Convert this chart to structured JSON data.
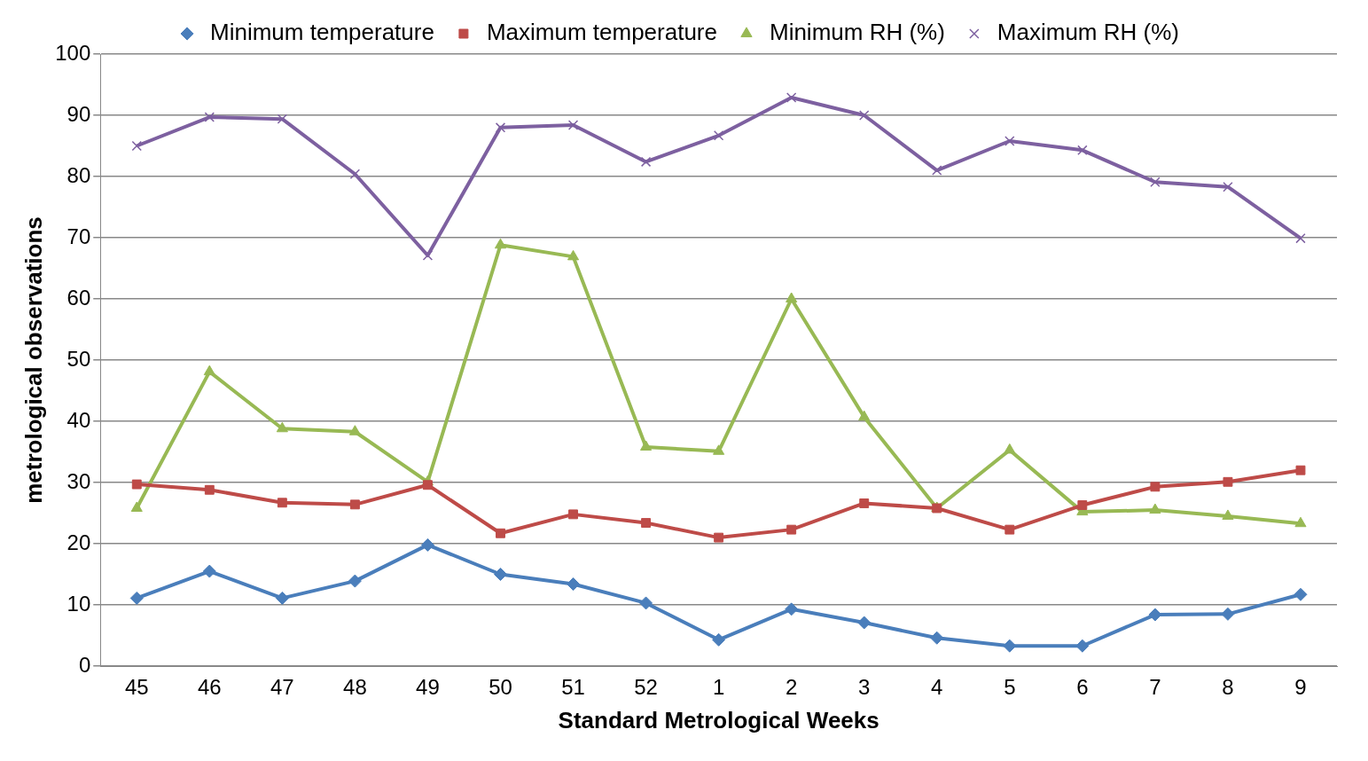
{
  "chart_data": {
    "type": "line",
    "xlabel": "Standard Metrological Weeks",
    "ylabel": "metrological observations",
    "categories": [
      "45",
      "46",
      "47",
      "48",
      "49",
      "50",
      "51",
      "52",
      "1",
      "2",
      "3",
      "4",
      "5",
      "6",
      "7",
      "8",
      "9"
    ],
    "ylim": [
      0,
      100
    ],
    "yticks": [
      0,
      10,
      20,
      30,
      40,
      50,
      60,
      70,
      80,
      90,
      100
    ],
    "grid": "y",
    "legend": "top",
    "line_style": "solid",
    "series": [
      {
        "name": "Minimum temperature",
        "color": "#4a7ebb",
        "marker": "diamond",
        "values": [
          11.1,
          15.5,
          11.1,
          13.9,
          19.8,
          15.0,
          13.4,
          10.3,
          4.3,
          9.3,
          7.1,
          4.6,
          3.3,
          3.3,
          8.4,
          8.5,
          11.7
        ]
      },
      {
        "name": "Maximum temperature",
        "color": "#be4b48",
        "marker": "square",
        "values": [
          29.7,
          28.8,
          26.7,
          26.4,
          29.6,
          21.7,
          24.8,
          23.4,
          21.0,
          22.3,
          26.6,
          25.8,
          22.3,
          26.3,
          29.3,
          30.1,
          32.0
        ]
      },
      {
        "name": "Minimum RH (%)",
        "color": "#98b954",
        "marker": "triangle",
        "values": [
          25.8,
          48.1,
          38.8,
          38.3,
          30.1,
          68.8,
          66.9,
          35.8,
          35.1,
          60.0,
          40.7,
          25.8,
          35.3,
          25.2,
          25.5,
          24.5,
          23.3
        ]
      },
      {
        "name": "Maximum RH (%)",
        "color": "#7d60a0",
        "marker": "cross",
        "values": [
          85.0,
          89.7,
          89.4,
          80.4,
          67.1,
          88.0,
          88.4,
          82.4,
          86.7,
          92.9,
          90.0,
          81.0,
          85.8,
          84.3,
          79.1,
          78.3,
          69.9
        ]
      }
    ]
  }
}
